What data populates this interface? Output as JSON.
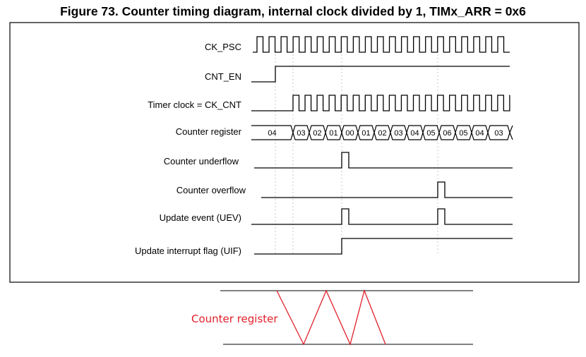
{
  "figure": {
    "title": "Figure 73. Counter timing diagram, internal clock divided by 1, TIMx_ARR = 0x6"
  },
  "signals": {
    "ck_psc": "CK_PSC",
    "cnt_en": "CNT_EN",
    "timer_clock": "Timer clock = CK_CNT",
    "counter_register": "Counter register",
    "counter_underflow": "Counter underflow",
    "counter_overflow": "Counter overflow",
    "update_event": "Update event (UEV)",
    "uif": "Update interrupt flag (UIF)"
  },
  "counter_values": [
    "04",
    "03",
    "02",
    "01",
    "00",
    "01",
    "02",
    "03",
    "04",
    "05",
    "06",
    "05",
    "04",
    "03"
  ],
  "annotation": {
    "label": "Counter register",
    "color": "#e0202a"
  }
}
